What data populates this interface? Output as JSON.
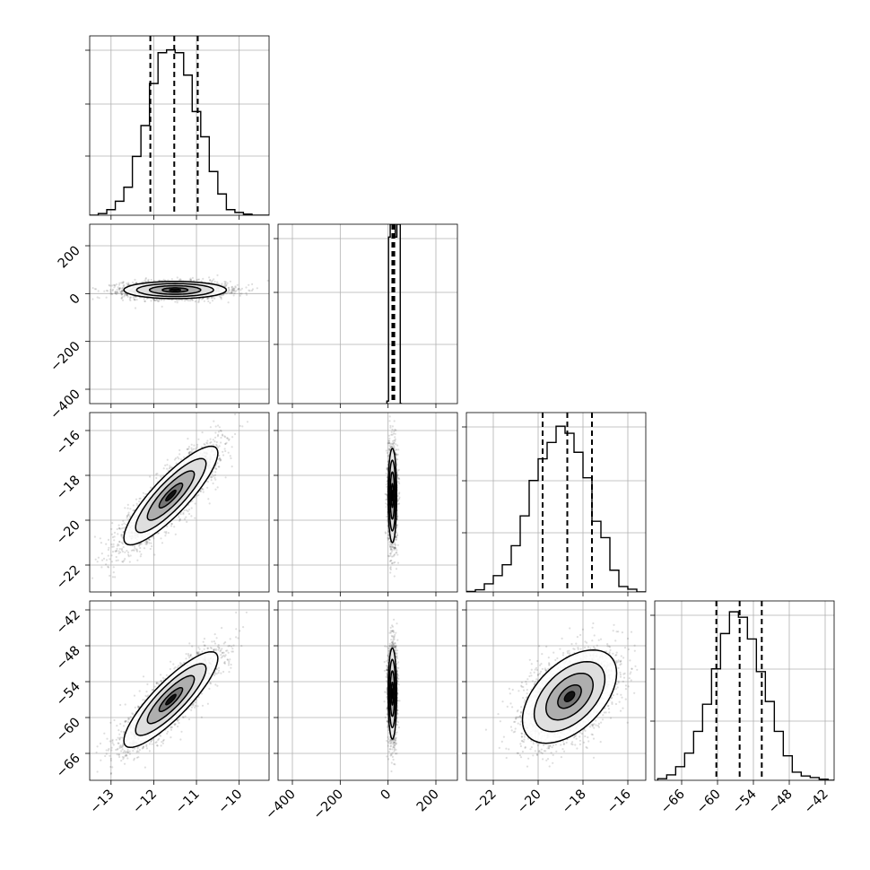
{
  "figure": {
    "title": "",
    "colors": {
      "ink": "#000000",
      "grid": "#b0b0b0",
      "background": "#ffffff"
    }
  },
  "chart_data": {
    "type": "corner",
    "variables": [
      {
        "index": 0,
        "range": [
          -13.5,
          -9.3
        ],
        "ticks": [
          -13,
          -12,
          -11,
          -10
        ],
        "label": "",
        "quantiles": [
          -12.08,
          -11.52,
          -10.97
        ]
      },
      {
        "index": 1,
        "range": [
          -460,
          290
        ],
        "ticks": [
          -400,
          -200,
          0,
          200
        ],
        "label": "",
        "quantiles": [
          18,
          22,
          26
        ]
      },
      {
        "index": 2,
        "range": [
          -23.2,
          -15.2
        ],
        "ticks": [
          -22,
          -20,
          -18,
          -16
        ],
        "label": "",
        "quantiles": [
          -19.8,
          -18.7,
          -17.6
        ]
      },
      {
        "index": 3,
        "range": [
          -70.5,
          -40.5
        ],
        "ticks": [
          -66,
          -60,
          -54,
          -48,
          -42
        ],
        "label": "",
        "quantiles": [
          -60.2,
          -56.3,
          -52.6
        ]
      }
    ],
    "histograms": [
      {
        "variable": 0,
        "bin_edges": [
          -13.5,
          -13.3,
          -13.1,
          -12.9,
          -12.7,
          -12.5,
          -12.3,
          -12.1,
          -11.9,
          -11.7,
          -11.5,
          -11.3,
          -11.1,
          -10.9,
          -10.7,
          -10.5,
          -10.3,
          -10.1,
          -9.9,
          -9.7,
          -9.5,
          -9.3
        ],
        "counts": [
          0,
          3,
          10,
          25,
          50,
          105,
          160,
          235,
          290,
          295,
          290,
          250,
          185,
          140,
          78,
          38,
          10,
          5,
          2,
          0,
          0
        ],
        "ylim": [
          0,
          320
        ]
      },
      {
        "variable": 1,
        "bin_edges": [
          -5,
          2,
          9,
          16,
          23,
          30,
          37,
          44,
          51,
          58
        ],
        "counts": [
          3,
          195,
          3400,
          1300,
          210,
          195,
          260,
          210,
          0
        ],
        "ylim": [
          0,
          210
        ]
      },
      {
        "variable": 2,
        "bin_edges": [
          -23.2,
          -22.8,
          -22.4,
          -22.0,
          -21.6,
          -21.2,
          -20.8,
          -20.4,
          -20.0,
          -19.6,
          -19.2,
          -18.8,
          -18.4,
          -18.0,
          -17.6,
          -17.2,
          -16.8,
          -16.4,
          -16.0,
          -15.6,
          -15.2
        ],
        "counts": [
          1,
          4,
          15,
          30,
          50,
          85,
          140,
          205,
          245,
          275,
          305,
          292,
          257,
          210,
          130,
          100,
          40,
          10,
          5,
          0
        ],
        "ylim": [
          0,
          330
        ]
      },
      {
        "variable": 3,
        "bin_edges": [
          -70,
          -68.5,
          -67,
          -65.5,
          -64,
          -62.5,
          -61,
          -59.5,
          -58,
          -56.5,
          -55,
          -53.5,
          -52,
          -50.5,
          -49,
          -47.5,
          -46,
          -44.5,
          -43,
          -41.5,
          -40.5
        ],
        "counts": [
          3,
          10,
          25,
          50,
          90,
          140,
          205,
          270,
          310,
          300,
          260,
          200,
          145,
          90,
          45,
          15,
          8,
          5,
          2,
          0
        ],
        "ylim": [
          0,
          330
        ]
      }
    ],
    "pairs": [
      {
        "x_var": 0,
        "y_var": 1,
        "center": [
          -11.5,
          15
        ],
        "sd": [
          0.6,
          18
        ],
        "rho": 0.0,
        "contour_sd": [
          0.5,
          1.0,
          1.5,
          2.0
        ]
      },
      {
        "x_var": 0,
        "y_var": 2,
        "center": [
          -11.6,
          -18.9
        ],
        "sd": [
          0.55,
          1.1
        ],
        "rho": 0.86,
        "contour_sd": [
          0.5,
          1.0,
          1.5,
          2.0
        ]
      },
      {
        "x_var": 1,
        "y_var": 2,
        "center": [
          18,
          -18.9
        ],
        "sd": [
          9,
          1.05
        ],
        "rho": 0.0,
        "contour_sd": [
          0.5,
          1.0,
          1.5,
          2.0
        ]
      },
      {
        "x_var": 0,
        "y_var": 3,
        "center": [
          -11.6,
          -57.0
        ],
        "sd": [
          0.55,
          4.0
        ],
        "rho": 0.86,
        "contour_sd": [
          0.5,
          1.0,
          1.5,
          2.0
        ]
      },
      {
        "x_var": 1,
        "y_var": 3,
        "center": [
          18,
          -56.0
        ],
        "sd": [
          9,
          3.8
        ],
        "rho": 0.0,
        "contour_sd": [
          0.5,
          1.0,
          1.5,
          2.0
        ]
      },
      {
        "x_var": 2,
        "y_var": 3,
        "center": [
          -18.6,
          -56.5
        ],
        "sd": [
          1.05,
          3.9
        ],
        "rho": 0.5,
        "contour_sd": [
          0.5,
          1.0,
          1.5,
          2.0
        ]
      }
    ],
    "grid": true,
    "legend": "none"
  }
}
